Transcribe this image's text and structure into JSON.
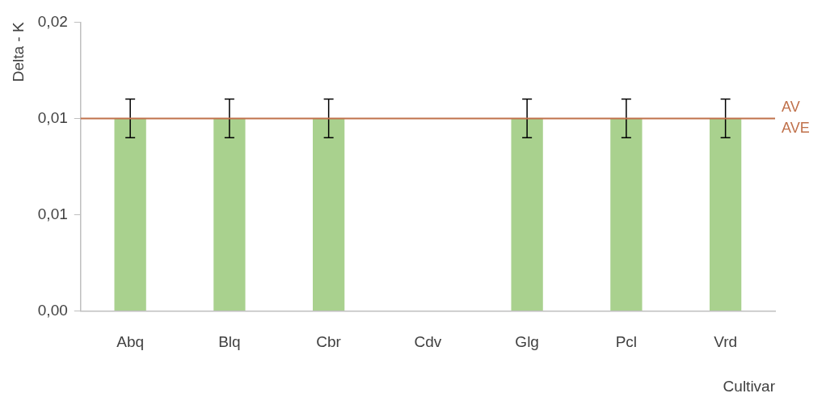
{
  "chart_data": {
    "type": "bar",
    "xlabel": "Cultivar",
    "ylabel": "Delta - K",
    "categories": [
      "Abq",
      "Blq",
      "Cbr",
      "Cdv",
      "Glg",
      "Pcl",
      "Vrd"
    ],
    "values": [
      0.01,
      0.01,
      0.01,
      null,
      0.01,
      0.01,
      0.01
    ],
    "errors": [
      0.001,
      0.001,
      0.001,
      null,
      0.001,
      0.001,
      0.001
    ],
    "color": "#a9d18e",
    "ylim": [
      0,
      0.015
    ],
    "yticks": [
      {
        "value": 0,
        "label": "0,00"
      },
      {
        "value": 0.005,
        "label": "0,01"
      },
      {
        "value": 0.01,
        "label": "0,01"
      },
      {
        "value": 0.015,
        "label": "0,02"
      }
    ],
    "ref_lines": [
      {
        "axis": "y",
        "value": 0.01,
        "label": "AV",
        "color": "#c0714b"
      }
    ],
    "annotations": [
      "AVE"
    ],
    "grid": false,
    "legend": false
  }
}
